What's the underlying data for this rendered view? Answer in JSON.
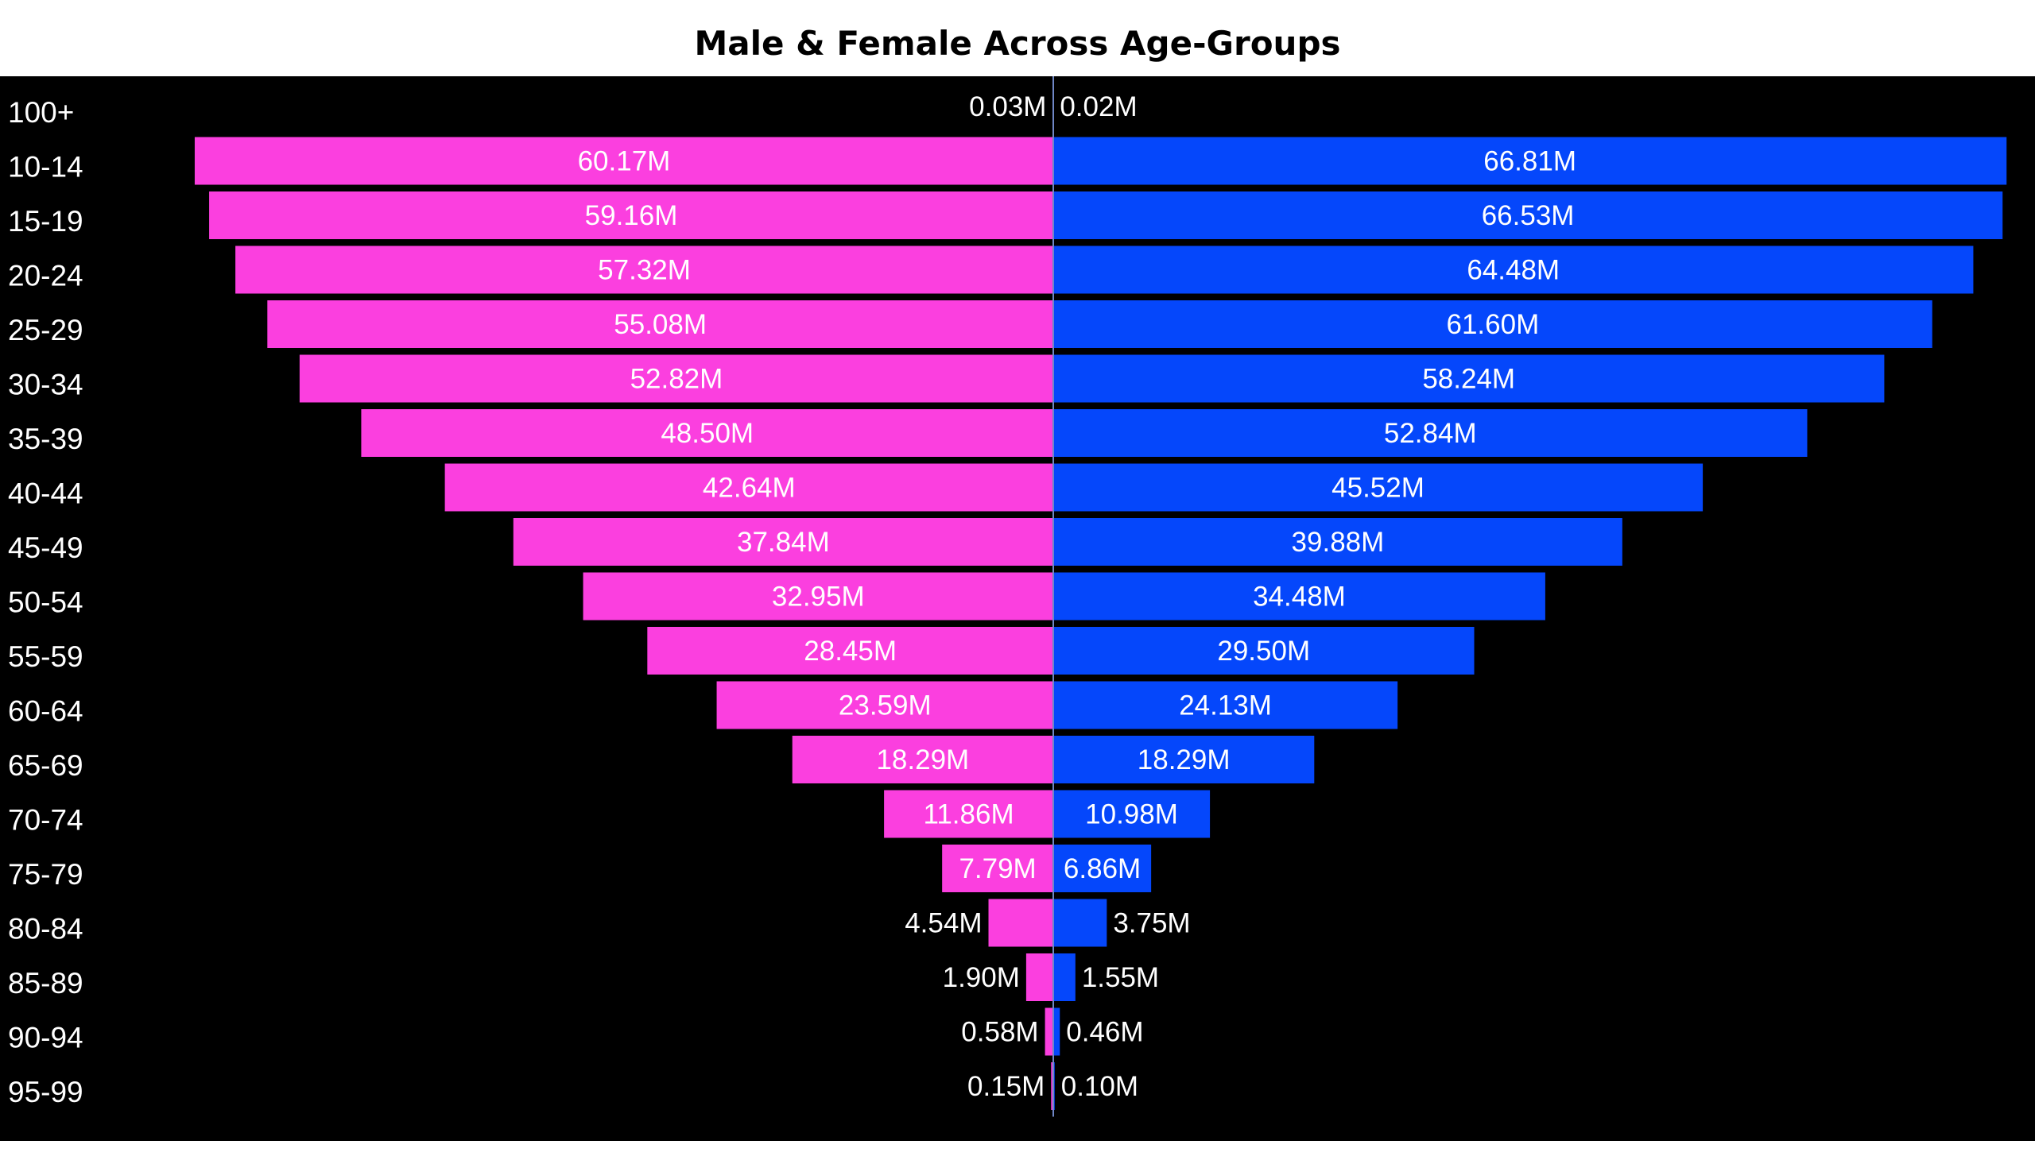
{
  "chart_data": {
    "type": "bar",
    "title": "Male & Female Across Age-Groups",
    "xlabel": "",
    "ylabel": "",
    "categories": [
      "100+",
      "10-14",
      "15-19",
      "20-24",
      "25-29",
      "30-34",
      "35-39",
      "40-44",
      "45-49",
      "50-54",
      "55-59",
      "60-64",
      "65-69",
      "70-74",
      "75-79",
      "80-84",
      "85-89",
      "90-94",
      "95-99"
    ],
    "series": [
      {
        "side": "left",
        "color": "#fb3fdf",
        "values": [
          0.03,
          60.17,
          59.16,
          57.32,
          55.08,
          52.82,
          48.5,
          42.64,
          37.84,
          32.95,
          28.45,
          23.59,
          18.29,
          11.86,
          7.79,
          4.54,
          1.9,
          0.58,
          0.15
        ],
        "labels": [
          "0.03M",
          "60.17M",
          "59.16M",
          "57.32M",
          "55.08M",
          "52.82M",
          "48.50M",
          "42.64M",
          "37.84M",
          "32.95M",
          "28.45M",
          "23.59M",
          "18.29M",
          "11.86M",
          "7.79M",
          "4.54M",
          "1.90M",
          "0.58M",
          "0.15M"
        ]
      },
      {
        "side": "right",
        "color": "#0547fb",
        "values": [
          0.02,
          66.81,
          66.53,
          64.48,
          61.6,
          58.24,
          52.84,
          45.52,
          39.88,
          34.48,
          29.5,
          24.13,
          18.29,
          10.98,
          6.86,
          3.75,
          1.55,
          0.46,
          0.1
        ],
        "labels": [
          "0.02M",
          "66.81M",
          "66.53M",
          "64.48M",
          "61.60M",
          "58.24M",
          "52.84M",
          "45.52M",
          "39.88M",
          "34.48M",
          "29.50M",
          "24.13M",
          "18.29M",
          "10.98M",
          "6.86M",
          "3.75M",
          "1.55M",
          "0.46M",
          "0.10M"
        ]
      }
    ],
    "background": "#000000",
    "grid": false,
    "legend": "none"
  }
}
